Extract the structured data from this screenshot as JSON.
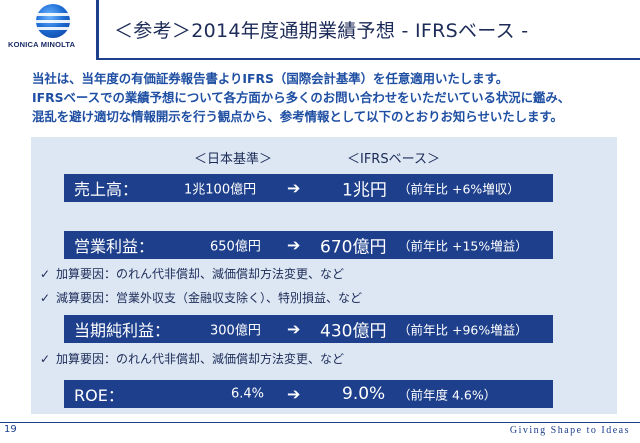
{
  "header": {
    "logo_text": "KONICA MINOLTA",
    "title": "＜参考＞2014年度通期業績予想 - IFRSベース -"
  },
  "intro": {
    "lines": [
      "当社は、当年度の有価証券報告書よりIFRS（国際会計基準）を任意適用いたします。",
      "IFRSベースでの業績予想について各方面から多くのお問い合わせをいただいている状況に鑑み、",
      "混乱を避け適切な情報開示を行う観点から、参考情報として以下のとおりお知らせいたします。"
    ]
  },
  "columns": {
    "jgaap": "＜日本基準＞",
    "ifrs": "＜IFRSベース＞"
  },
  "rows": [
    {
      "label": "売上高：",
      "old": "1兆100億円",
      "arrow": "➔",
      "new": "1兆円",
      "note": "（前年比 +6%増収）"
    },
    {
      "label": "営業利益：",
      "old": "650億円",
      "arrow": "➔",
      "new": "670億円",
      "note": "（前年比 +15%増益）"
    },
    {
      "label": "当期純利益：",
      "old": "300億円",
      "arrow": "➔",
      "new": "430億円",
      "note": "（前年比 +96%増益）"
    },
    {
      "label": "ROE：",
      "old": "6.4%",
      "arrow": "➔",
      "new": "9.0%",
      "note": "（前年度 4.6%）"
    }
  ],
  "checks": {
    "mark": "✓",
    "op_add": "加算要因：のれん代非償却、減価償却方法変更、など",
    "op_sub": "減算要因：営業外収支（金融収支除く）、特別損益、など",
    "ni_add": "加算要因：のれん代非償却、減価償却方法変更、など"
  },
  "footer": {
    "page": "19",
    "tagline": "Giving Shape to Ideas"
  },
  "colors": {
    "brand_navy": "#1d3f8c",
    "text_blue": "#1f4fa3",
    "panel_bg": "#dde7f4"
  }
}
